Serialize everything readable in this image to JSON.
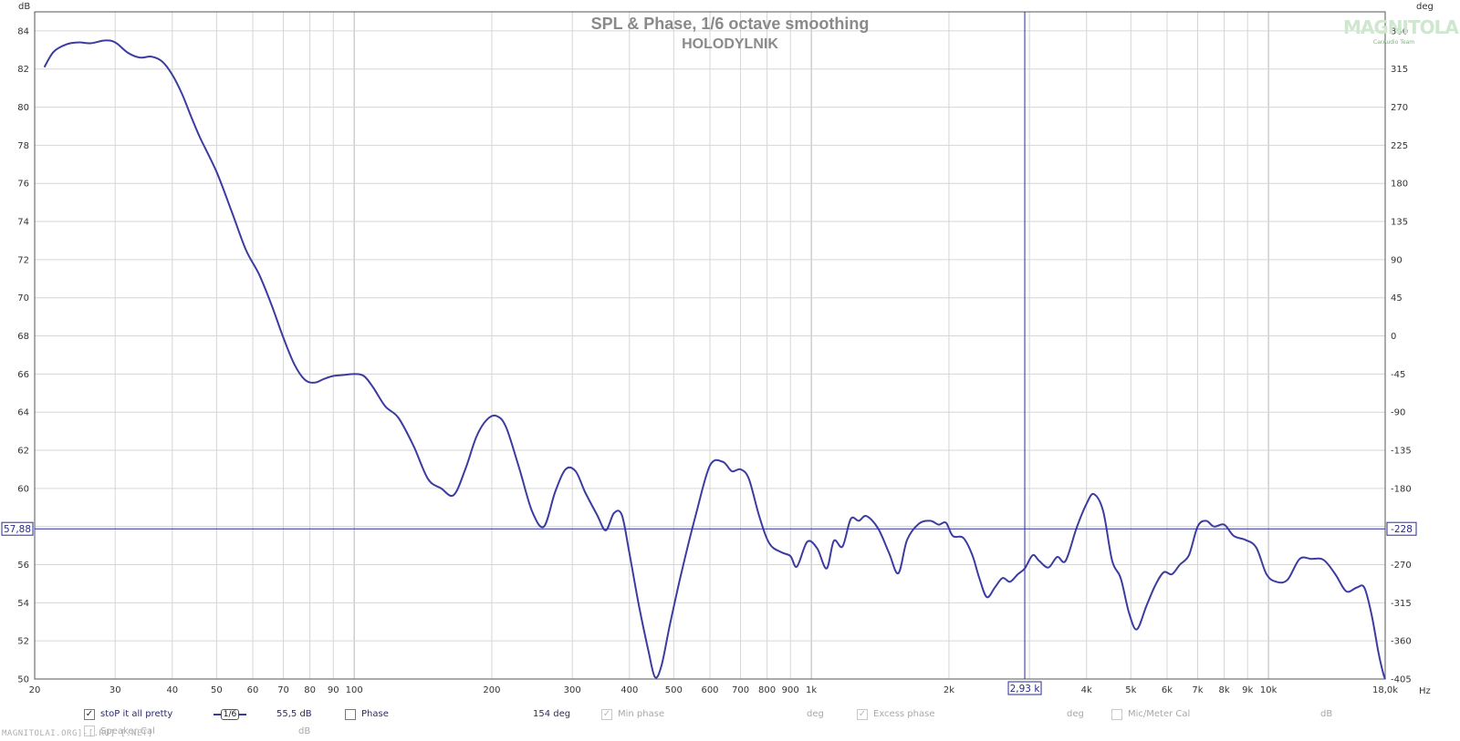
{
  "chart_data": {
    "type": "line",
    "title": "SPL & Phase, 1/6 octave smoothing",
    "subtitle": "HOLODYLNIK",
    "y_left_unit": "dB",
    "y_right_unit": "deg",
    "x_unit": "Hz",
    "xlim": [
      20,
      18000
    ],
    "x_scale": "log",
    "ylim": [
      50,
      85
    ],
    "y2lim": [
      -405,
      382.5
    ],
    "grid": true,
    "y_left_ticks": [
      "84",
      "82",
      "80",
      "78",
      "76",
      "74",
      "72",
      "70",
      "68",
      "66",
      "64",
      "62",
      "60",
      "58",
      "56",
      "54",
      "52",
      "50"
    ],
    "y_right_ticks": [
      "360",
      "315",
      "270",
      "225",
      "180",
      "135",
      "90",
      "45",
      "0",
      "-45",
      "-90",
      "-135",
      "-180",
      "-228",
      "-270",
      "-315",
      "-360",
      "-405"
    ],
    "x_ticks": [
      {
        "v": 20,
        "t": "20"
      },
      {
        "v": 30,
        "t": "30"
      },
      {
        "v": 40,
        "t": "40"
      },
      {
        "v": 50,
        "t": "50"
      },
      {
        "v": 60,
        "t": "60"
      },
      {
        "v": 70,
        "t": "70"
      },
      {
        "v": 80,
        "t": "80"
      },
      {
        "v": 90,
        "t": "90"
      },
      {
        "v": 100,
        "t": "100"
      },
      {
        "v": 200,
        "t": "200"
      },
      {
        "v": 300,
        "t": "300"
      },
      {
        "v": 400,
        "t": "400"
      },
      {
        "v": 500,
        "t": "500"
      },
      {
        "v": 600,
        "t": "600"
      },
      {
        "v": 700,
        "t": "700"
      },
      {
        "v": 800,
        "t": "800"
      },
      {
        "v": 900,
        "t": "900"
      },
      {
        "v": 1000,
        "t": "1k"
      },
      {
        "v": 2000,
        "t": "2k"
      },
      {
        "v": 4000,
        "t": "4k"
      },
      {
        "v": 5000,
        "t": "5k"
      },
      {
        "v": 6000,
        "t": "6k"
      },
      {
        "v": 7000,
        "t": "7k"
      },
      {
        "v": 8000,
        "t": "8k"
      },
      {
        "v": 9000,
        "t": "9k"
      },
      {
        "v": 10000,
        "t": "10k"
      },
      {
        "v": 18000,
        "t": "18,0k"
      }
    ],
    "cursor": {
      "x": 2930,
      "x_label": "2,93 k",
      "y": 57.88,
      "y_label": "57,88",
      "y2_label": "-228"
    },
    "series": [
      {
        "name": "stoP it all pretty",
        "color": "#3c3ca0",
        "points": [
          [
            21,
            82.1
          ],
          [
            22,
            82.9
          ],
          [
            23.5,
            83.3
          ],
          [
            25,
            83.4
          ],
          [
            26.5,
            83.35
          ],
          [
            28.5,
            83.5
          ],
          [
            30,
            83.4
          ],
          [
            32,
            82.85
          ],
          [
            34,
            82.6
          ],
          [
            36,
            82.65
          ],
          [
            38,
            82.4
          ],
          [
            40,
            81.7
          ],
          [
            42,
            80.7
          ],
          [
            44,
            79.5
          ],
          [
            46,
            78.4
          ],
          [
            50,
            76.6
          ],
          [
            54,
            74.5
          ],
          [
            58,
            72.5
          ],
          [
            62,
            71.2
          ],
          [
            66,
            69.6
          ],
          [
            70,
            67.9
          ],
          [
            74,
            66.5
          ],
          [
            78,
            65.7
          ],
          [
            82,
            65.55
          ],
          [
            86,
            65.75
          ],
          [
            90,
            65.9
          ],
          [
            95,
            65.95
          ],
          [
            100,
            66.0
          ],
          [
            105,
            65.9
          ],
          [
            110,
            65.3
          ],
          [
            117,
            64.3
          ],
          [
            125,
            63.7
          ],
          [
            135,
            62.2
          ],
          [
            145,
            60.5
          ],
          [
            155,
            60.0
          ],
          [
            165,
            59.65
          ],
          [
            175,
            61.0
          ],
          [
            185,
            62.7
          ],
          [
            195,
            63.6
          ],
          [
            205,
            63.8
          ],
          [
            215,
            63.2
          ],
          [
            230,
            61.0
          ],
          [
            245,
            58.8
          ],
          [
            260,
            58.0
          ],
          [
            275,
            59.8
          ],
          [
            290,
            61.0
          ],
          [
            305,
            60.9
          ],
          [
            320,
            59.8
          ],
          [
            340,
            58.6
          ],
          [
            355,
            57.8
          ],
          [
            370,
            58.7
          ],
          [
            385,
            58.6
          ],
          [
            400,
            56.6
          ],
          [
            420,
            53.8
          ],
          [
            440,
            51.5
          ],
          [
            455,
            50.1
          ],
          [
            470,
            50.7
          ],
          [
            490,
            52.8
          ],
          [
            520,
            55.6
          ],
          [
            560,
            58.7
          ],
          [
            600,
            61.2
          ],
          [
            640,
            61.4
          ],
          [
            670,
            60.9
          ],
          [
            700,
            61.0
          ],
          [
            730,
            60.5
          ],
          [
            770,
            58.5
          ],
          [
            810,
            57.1
          ],
          [
            860,
            56.65
          ],
          [
            900,
            56.45
          ],
          [
            930,
            55.9
          ],
          [
            980,
            57.2
          ],
          [
            1030,
            56.85
          ],
          [
            1080,
            55.8
          ],
          [
            1120,
            57.25
          ],
          [
            1170,
            56.95
          ],
          [
            1220,
            58.4
          ],
          [
            1270,
            58.3
          ],
          [
            1320,
            58.55
          ],
          [
            1400,
            57.9
          ],
          [
            1480,
            56.6
          ],
          [
            1550,
            55.55
          ],
          [
            1620,
            57.3
          ],
          [
            1720,
            58.15
          ],
          [
            1820,
            58.3
          ],
          [
            1900,
            58.1
          ],
          [
            1970,
            58.2
          ],
          [
            2040,
            57.5
          ],
          [
            2150,
            57.4
          ],
          [
            2250,
            56.5
          ],
          [
            2330,
            55.3
          ],
          [
            2420,
            54.3
          ],
          [
            2520,
            54.8
          ],
          [
            2620,
            55.3
          ],
          [
            2720,
            55.1
          ],
          [
            2830,
            55.5
          ],
          [
            2930,
            55.8
          ],
          [
            3050,
            56.5
          ],
          [
            3150,
            56.2
          ],
          [
            3300,
            55.85
          ],
          [
            3450,
            56.4
          ],
          [
            3600,
            56.2
          ],
          [
            3800,
            57.9
          ],
          [
            4000,
            59.2
          ],
          [
            4150,
            59.7
          ],
          [
            4350,
            58.8
          ],
          [
            4550,
            56.2
          ],
          [
            4750,
            55.3
          ],
          [
            4950,
            53.5
          ],
          [
            5150,
            52.6
          ],
          [
            5400,
            53.8
          ],
          [
            5650,
            54.9
          ],
          [
            5900,
            55.6
          ],
          [
            6150,
            55.5
          ],
          [
            6400,
            56.0
          ],
          [
            6700,
            56.5
          ],
          [
            7000,
            58.0
          ],
          [
            7300,
            58.3
          ],
          [
            7600,
            58.0
          ],
          [
            8000,
            58.1
          ],
          [
            8400,
            57.5
          ],
          [
            8900,
            57.3
          ],
          [
            9400,
            56.9
          ],
          [
            9900,
            55.5
          ],
          [
            10400,
            55.1
          ],
          [
            11000,
            55.2
          ],
          [
            11700,
            56.3
          ],
          [
            12400,
            56.3
          ],
          [
            13200,
            56.25
          ],
          [
            14000,
            55.5
          ],
          [
            14800,
            54.6
          ],
          [
            15600,
            54.8
          ],
          [
            16200,
            54.8
          ],
          [
            16800,
            53.4
          ],
          [
            17400,
            51.4
          ],
          [
            17800,
            50.35
          ],
          [
            18000,
            50.0
          ]
        ]
      }
    ]
  },
  "legend": {
    "series_checkbox_mark": "✓",
    "series_name": "stoP it all pretty",
    "smoothing_label": "1/6",
    "level_value": "55,5 dB",
    "phase_label": "Phase",
    "phase_value": "154 deg",
    "min_phase_label": "Min phase",
    "min_phase_unit": "deg",
    "excess_phase_label": "Excess phase",
    "excess_phase_unit": "deg",
    "mic_cal_label": "Mic/Meter Cal",
    "mic_cal_unit": "dB",
    "speaker_cal_label": "Speaker Cal",
    "speaker_cal_unit": "dB"
  },
  "watermark": {
    "logo_text": "MAGNITOLA",
    "logo_sub": "CarAudio Team",
    "footer": "MAGNITOLAI.ORG]-[.RU] [.NET]"
  }
}
